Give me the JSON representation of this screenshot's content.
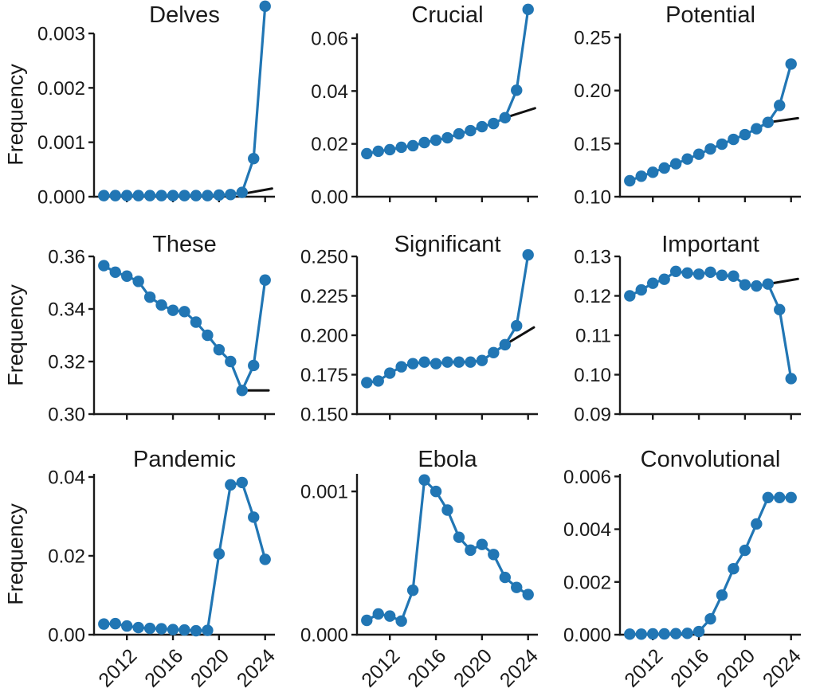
{
  "figure": {
    "description": "3x3 grid of word-frequency time series, 2010-2024",
    "y_axis_label": "Frequency"
  },
  "colors": {
    "series_line": "#2176b4",
    "trend_line": "#111111",
    "axis": "#1a1a1a",
    "text": "#1a1a1a",
    "background": "#ffffff"
  },
  "chart_data": [
    {
      "type": "line",
      "title": "Delves",
      "ylabel": "Frequency",
      "x": [
        2010,
        2011,
        2012,
        2013,
        2014,
        2015,
        2016,
        2017,
        2018,
        2019,
        2020,
        2021,
        2022,
        2023,
        2024
      ],
      "values": [
        2e-05,
        2e-05,
        2e-05,
        2e-05,
        2e-05,
        2e-05,
        2e-05,
        2e-05,
        2e-05,
        2e-05,
        3e-05,
        4e-05,
        8e-05,
        0.0007,
        0.0035
      ],
      "ylim": [
        0,
        0.003
      ],
      "yticks": [
        0,
        0.001,
        0.002,
        0.003
      ],
      "ytick_labels": [
        "0.000",
        "0.001",
        "0.002",
        "0.003"
      ],
      "xticks": [
        2012,
        2016,
        2020,
        2024
      ],
      "xtick_labels": [
        "2012",
        "2016",
        "2020",
        "2024"
      ],
      "show_xtick_labels": false,
      "trend": {
        "x": [
          2022,
          2024.6
        ],
        "y": [
          5e-05,
          0.00015
        ]
      }
    },
    {
      "type": "line",
      "title": "Crucial",
      "x": [
        2010,
        2011,
        2012,
        2013,
        2014,
        2015,
        2016,
        2017,
        2018,
        2019,
        2020,
        2021,
        2022,
        2023,
        2024
      ],
      "values": [
        0.0163,
        0.0172,
        0.0178,
        0.0187,
        0.0193,
        0.0205,
        0.0214,
        0.0223,
        0.0238,
        0.025,
        0.0265,
        0.0277,
        0.0299,
        0.0403,
        0.0709
      ],
      "ylim": [
        0,
        0.0618
      ],
      "yticks": [
        0,
        0.02,
        0.04,
        0.06
      ],
      "ytick_labels": [
        "0.00",
        "0.02",
        "0.04",
        "0.06"
      ],
      "xticks": [
        2012,
        2016,
        2020,
        2024
      ],
      "xtick_labels": [
        "2012",
        "2016",
        "2020",
        "2024"
      ],
      "show_xtick_labels": false,
      "trend": {
        "x": [
          2022,
          2024.6
        ],
        "y": [
          0.0299,
          0.0335
        ]
      }
    },
    {
      "type": "line",
      "title": "Potential",
      "x": [
        2010,
        2011,
        2012,
        2013,
        2014,
        2015,
        2016,
        2017,
        2018,
        2019,
        2020,
        2021,
        2022,
        2023,
        2024
      ],
      "values": [
        0.115,
        0.1193,
        0.123,
        0.127,
        0.131,
        0.1355,
        0.14,
        0.145,
        0.1495,
        0.154,
        0.1585,
        0.164,
        0.17,
        0.186,
        0.225
      ],
      "ylim": [
        0.1,
        0.2538
      ],
      "yticks": [
        0.1,
        0.15,
        0.2,
        0.25
      ],
      "ytick_labels": [
        "0.10",
        "0.15",
        "0.20",
        "0.25"
      ],
      "xticks": [
        2012,
        2016,
        2020,
        2024
      ],
      "xtick_labels": [
        "2012",
        "2016",
        "2020",
        "2024"
      ],
      "show_xtick_labels": false,
      "trend": {
        "x": [
          2022,
          2024.6
        ],
        "y": [
          0.17,
          0.174
        ]
      }
    },
    {
      "type": "line",
      "title": "These",
      "ylabel": "Frequency",
      "x": [
        2010,
        2011,
        2012,
        2013,
        2014,
        2015,
        2016,
        2017,
        2018,
        2019,
        2020,
        2021,
        2022,
        2023,
        2024
      ],
      "values": [
        0.3565,
        0.354,
        0.3525,
        0.3505,
        0.3445,
        0.3415,
        0.3395,
        0.339,
        0.335,
        0.33,
        0.3245,
        0.32,
        0.309,
        0.3185,
        0.351
      ],
      "ylim": [
        0.3,
        0.36
      ],
      "yticks": [
        0.3,
        0.32,
        0.34,
        0.36
      ],
      "ytick_labels": [
        "0.30",
        "0.32",
        "0.34",
        "0.36"
      ],
      "xticks": [
        2012,
        2016,
        2020,
        2024
      ],
      "xtick_labels": [
        "2012",
        "2016",
        "2020",
        "2024"
      ],
      "show_xtick_labels": false,
      "trend": {
        "x": [
          2022,
          2024.3
        ],
        "y": [
          0.309,
          0.309
        ]
      }
    },
    {
      "type": "line",
      "title": "Significant",
      "x": [
        2010,
        2011,
        2012,
        2013,
        2014,
        2015,
        2016,
        2017,
        2018,
        2019,
        2020,
        2021,
        2022,
        2023,
        2024
      ],
      "values": [
        0.17,
        0.171,
        0.176,
        0.18,
        0.182,
        0.183,
        0.182,
        0.183,
        0.183,
        0.183,
        0.184,
        0.189,
        0.194,
        0.206,
        0.251
      ],
      "ylim": [
        0.15,
        0.25
      ],
      "yticks": [
        0.15,
        0.175,
        0.2,
        0.225,
        0.25
      ],
      "ytick_labels": [
        "0.150",
        "0.175",
        "0.200",
        "0.225",
        "0.250"
      ],
      "xticks": [
        2012,
        2016,
        2020,
        2024
      ],
      "xtick_labels": [
        "2012",
        "2016",
        "2020",
        "2024"
      ],
      "show_xtick_labels": false,
      "trend": {
        "x": [
          2022,
          2024.5
        ],
        "y": [
          0.194,
          0.205
        ]
      }
    },
    {
      "type": "line",
      "title": "Important",
      "x": [
        2010,
        2011,
        2012,
        2013,
        2014,
        2015,
        2016,
        2017,
        2018,
        2019,
        2020,
        2021,
        2022,
        2023,
        2024
      ],
      "values": [
        0.12,
        0.1215,
        0.1232,
        0.1242,
        0.1262,
        0.1258,
        0.1255,
        0.126,
        0.1252,
        0.125,
        0.1228,
        0.1225,
        0.123,
        0.1165,
        0.099
      ],
      "ylim": [
        0.09,
        0.13
      ],
      "yticks": [
        0.09,
        0.1,
        0.11,
        0.12,
        0.13
      ],
      "ytick_labels": [
        "0.09",
        "0.10",
        "0.11",
        "0.12",
        "0.13"
      ],
      "xticks": [
        2012,
        2016,
        2020,
        2024
      ],
      "xtick_labels": [
        "2012",
        "2016",
        "2020",
        "2024"
      ],
      "show_xtick_labels": false,
      "trend": {
        "x": [
          2022,
          2024.6
        ],
        "y": [
          0.123,
          0.1243
        ]
      }
    },
    {
      "type": "line",
      "title": "Pandemic",
      "ylabel": "Frequency",
      "x": [
        2010,
        2011,
        2012,
        2013,
        2014,
        2015,
        2016,
        2017,
        2018,
        2019,
        2020,
        2021,
        2022,
        2023,
        2024
      ],
      "values": [
        0.0027,
        0.0028,
        0.0022,
        0.0018,
        0.0016,
        0.0015,
        0.0013,
        0.0012,
        0.001,
        0.0011,
        0.0205,
        0.038,
        0.0386,
        0.0298,
        0.0191
      ],
      "ylim": [
        0,
        0.0408
      ],
      "yticks": [
        0,
        0.02,
        0.04
      ],
      "ytick_labels": [
        "0.00",
        "0.02",
        "0.04"
      ],
      "xticks": [
        2012,
        2016,
        2020,
        2024
      ],
      "xtick_labels": [
        "2012",
        "2016",
        "2020",
        "2024"
      ],
      "show_xtick_labels": true,
      "trend": null
    },
    {
      "type": "line",
      "title": "Ebola",
      "x": [
        2010,
        2011,
        2012,
        2013,
        2014,
        2015,
        2016,
        2017,
        2018,
        2019,
        2020,
        2021,
        2022,
        2023,
        2024
      ],
      "values": [
        0.0001,
        0.000145,
        0.00013,
        9.5e-05,
        0.00031,
        0.00108,
        0.001,
        0.00087,
        0.00068,
        0.00059,
        0.00063,
        0.00056,
        0.0004,
        0.00033,
        0.00028
      ],
      "ylim": [
        0,
        0.001123
      ],
      "yticks": [
        0,
        0.001
      ],
      "ytick_labels": [
        "0.000",
        "0.001"
      ],
      "xticks": [
        2012,
        2016,
        2020,
        2024
      ],
      "xtick_labels": [
        "2012",
        "2016",
        "2020",
        "2024"
      ],
      "show_xtick_labels": true,
      "trend": null
    },
    {
      "type": "line",
      "title": "Convolutional",
      "x": [
        2010,
        2011,
        2012,
        2013,
        2014,
        2015,
        2016,
        2017,
        2018,
        2019,
        2020,
        2021,
        2022,
        2023,
        2024
      ],
      "values": [
        2e-05,
        2e-05,
        3e-05,
        3e-05,
        4e-05,
        5e-05,
        0.00012,
        0.0006,
        0.0015,
        0.0025,
        0.0032,
        0.0042,
        0.0052,
        0.0052,
        0.0052
      ],
      "ylim": [
        0,
        0.0061
      ],
      "yticks": [
        0,
        0.002,
        0.004,
        0.006
      ],
      "ytick_labels": [
        "0.000",
        "0.002",
        "0.004",
        "0.006"
      ],
      "xticks": [
        2012,
        2016,
        2020,
        2024
      ],
      "xtick_labels": [
        "2012",
        "2016",
        "2020",
        "2024"
      ],
      "show_xtick_labels": true,
      "trend": null
    }
  ]
}
